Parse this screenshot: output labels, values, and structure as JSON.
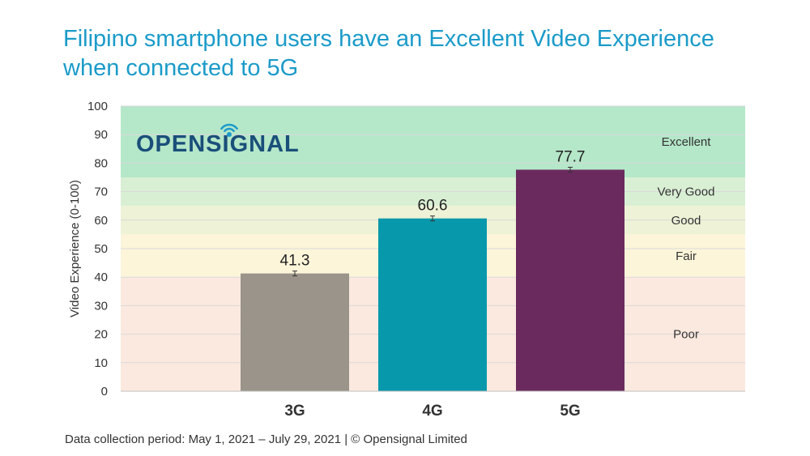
{
  "title": "Filipino smartphone users have an Excellent Video Experience when connected to 5G",
  "footer": "Data collection period: May 1, 2021 – July 29, 2021 | © Opensignal Limited",
  "logo": {
    "text": "OPENSIGNAL",
    "color": "#1a4f7a",
    "accent": "#1b9bc9"
  },
  "chart_data": {
    "type": "bar",
    "ylabel": "Video Experience (0-100)",
    "ylim": [
      0,
      100
    ],
    "yticks": [
      0,
      10,
      20,
      30,
      40,
      50,
      60,
      70,
      80,
      90,
      100
    ],
    "categories": [
      "3G",
      "4G",
      "5G"
    ],
    "values": [
      41.3,
      60.6,
      77.7
    ],
    "value_labels": [
      "41.3",
      "60.6",
      "77.7"
    ],
    "bar_colors": [
      "#9a948a",
      "#0798ab",
      "#6b2a5e"
    ],
    "error_bars": true,
    "grid": true,
    "bands": [
      {
        "label": "Poor",
        "from": 0,
        "to": 40,
        "color": "#fbe9df"
      },
      {
        "label": "Fair",
        "from": 40,
        "to": 55,
        "color": "#fdf5da"
      },
      {
        "label": "Good",
        "from": 55,
        "to": 65,
        "color": "#eef2d6"
      },
      {
        "label": "Very Good",
        "from": 65,
        "to": 75,
        "color": "#d9efd4"
      },
      {
        "label": "Excellent",
        "from": 75,
        "to": 100,
        "color": "#b5e7c9"
      }
    ]
  }
}
